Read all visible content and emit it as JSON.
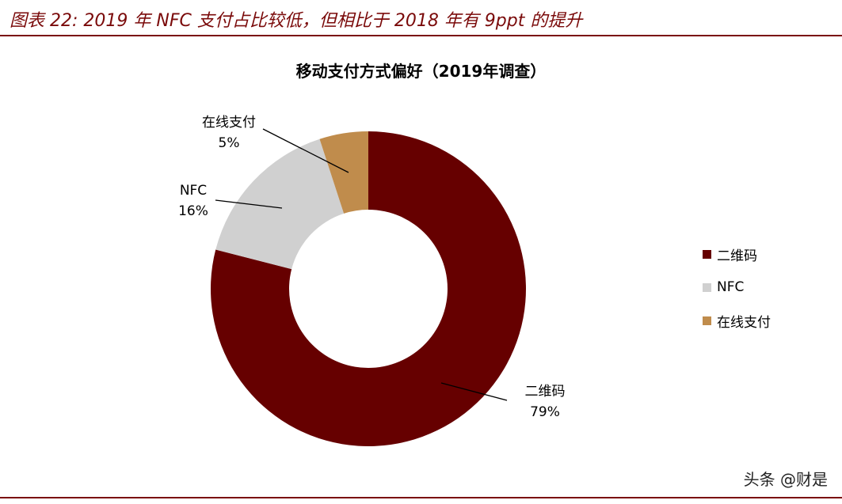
{
  "caption": "图表 22: 2019 年 NFC 支付占比较低，但相比于 2018 年有 9ppt 的提升",
  "watermark": "头条 @财是",
  "colors": {
    "rule": "#7a0a0a",
    "caption": "#7a0a0a"
  },
  "chart_data": {
    "type": "pie",
    "donut": true,
    "title": "移动支付方式偏好（2019年调查）",
    "start_angle_deg": 0,
    "direction": "clockwise",
    "legend_position": "right",
    "slices": [
      {
        "name": "二维码",
        "value": 79,
        "label": "79%",
        "color": "#660000"
      },
      {
        "name": "NFC",
        "value": 16,
        "label": "16%",
        "color": "#d0d0d0"
      },
      {
        "name": "在线支付",
        "value": 5,
        "label": "5%",
        "color": "#c08c4c"
      }
    ]
  }
}
